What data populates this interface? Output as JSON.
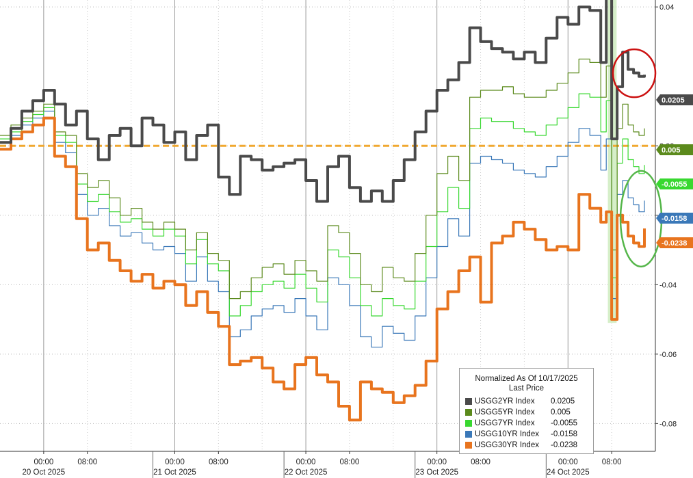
{
  "chart_data": {
    "type": "line",
    "title": "",
    "xlabel": "",
    "ylabel": "",
    "ylim": [
      -0.088,
      0.042
    ],
    "y_ticks": [
      "0.04",
      "0.00",
      "-0.02",
      "-0.04",
      "-0.06",
      "-0.08"
    ],
    "y_tick_values": [
      0.04,
      0.0,
      -0.02,
      -0.04,
      -0.06,
      -0.08
    ],
    "x_ticks": [
      "00:00",
      "08:00",
      "00:00",
      "08:00",
      "00:00",
      "08:00",
      "00:00",
      "08:00",
      "00:00",
      "08:00"
    ],
    "x_tick_hours": [
      24,
      32,
      48,
      56,
      72,
      80,
      96,
      104,
      120,
      128
    ],
    "x_day_labels": [
      "20 Oct 2025",
      "21 Oct 2025",
      "22 Oct 2025",
      "23 Oct 2025",
      "24 Oct 2025"
    ],
    "x_day_hours": [
      24,
      48,
      72,
      96,
      120
    ],
    "x_range_hours": [
      16,
      136
    ],
    "zero_line": {
      "value": 0.0,
      "color": "#f0a830",
      "style": "dashed"
    },
    "grid": true,
    "legend": {
      "position": "bottom-right",
      "title": "Normalized As Of 10/17/2025",
      "subtitle": "Last Price"
    },
    "highlight_band": {
      "x_hours": [
        127.8,
        128.4
      ],
      "color": "#d6efc9"
    },
    "annotations": [
      {
        "shape": "ellipse",
        "color": "#cc1111",
        "around": "USGG2YR Index"
      },
      {
        "shape": "ellipse",
        "color": "#55b64a",
        "around": "USGG7YR Index"
      }
    ],
    "x_hours": [
      16,
      18,
      20,
      22,
      24,
      26,
      28,
      30,
      32,
      34,
      36,
      38,
      40,
      42,
      44,
      46,
      48,
      50,
      52,
      54,
      56,
      58,
      60,
      62,
      64,
      66,
      68,
      70,
      72,
      74,
      76,
      78,
      80,
      82,
      84,
      86,
      88,
      90,
      92,
      94,
      96,
      98,
      100,
      102,
      104,
      106,
      108,
      110,
      112,
      114,
      116,
      118,
      120,
      122,
      124,
      126,
      127,
      128,
      129,
      130,
      131,
      132,
      133,
      134
    ],
    "series": [
      {
        "name": "USGG2YR Index",
        "color": "#4a4a4a",
        "last": "0.0205",
        "last_value": 0.0205,
        "values": [
          0.001,
          0.005,
          0.01,
          0.013,
          0.016,
          0.012,
          0.006,
          0.01,
          0.002,
          -0.004,
          0.003,
          0.005,
          0.0,
          0.008,
          0.006,
          0.001,
          0.004,
          -0.004,
          0.003,
          0.006,
          -0.009,
          -0.014,
          -0.003,
          -0.004,
          -0.007,
          -0.006,
          -0.005,
          -0.004,
          -0.01,
          -0.016,
          -0.006,
          -0.003,
          -0.012,
          -0.016,
          -0.013,
          -0.016,
          -0.01,
          -0.004,
          0.004,
          0.01,
          0.016,
          0.019,
          0.024,
          0.034,
          0.03,
          0.028,
          0.027,
          0.025,
          0.027,
          0.024,
          0.031,
          0.037,
          0.035,
          0.04,
          0.039,
          0.024,
          0.043,
          0.002,
          0.017,
          0.027,
          0.022,
          0.021,
          0.02,
          0.0205
        ]
      },
      {
        "name": "USGG5YR Index",
        "color": "#5b8a1c",
        "last": "0.005",
        "last_value": 0.005,
        "values": [
          0.003,
          0.006,
          0.008,
          0.01,
          0.012,
          0.004,
          0.003,
          -0.008,
          -0.012,
          -0.01,
          -0.015,
          -0.02,
          -0.018,
          -0.022,
          -0.024,
          -0.022,
          -0.024,
          -0.03,
          -0.025,
          -0.031,
          -0.033,
          -0.044,
          -0.042,
          -0.038,
          -0.035,
          -0.034,
          -0.037,
          -0.033,
          -0.036,
          -0.039,
          -0.023,
          -0.025,
          -0.031,
          -0.04,
          -0.042,
          -0.035,
          -0.038,
          -0.039,
          -0.031,
          -0.02,
          -0.008,
          -0.003,
          -0.01,
          0.014,
          0.016,
          0.016,
          0.017,
          0.015,
          0.014,
          0.014,
          0.016,
          0.018,
          0.021,
          0.025,
          0.024,
          0.014,
          0.023,
          -0.03,
          0.005,
          0.012,
          0.006,
          0.004,
          0.003,
          0.005
        ]
      },
      {
        "name": "USGG7YR Index",
        "color": "#38d830",
        "last": "-0.0055",
        "last_value": -0.0055,
        "values": [
          0.002,
          0.004,
          0.007,
          0.009,
          0.011,
          0.003,
          0.001,
          -0.011,
          -0.016,
          -0.014,
          -0.019,
          -0.022,
          -0.021,
          -0.024,
          -0.026,
          -0.024,
          -0.026,
          -0.034,
          -0.027,
          -0.034,
          -0.036,
          -0.049,
          -0.046,
          -0.042,
          -0.04,
          -0.039,
          -0.041,
          -0.037,
          -0.041,
          -0.045,
          -0.03,
          -0.032,
          -0.038,
          -0.046,
          -0.049,
          -0.044,
          -0.046,
          -0.047,
          -0.039,
          -0.029,
          -0.019,
          -0.012,
          -0.018,
          0.005,
          0.008,
          0.007,
          0.007,
          0.005,
          0.004,
          0.003,
          0.006,
          0.008,
          0.011,
          0.015,
          0.014,
          0.004,
          0.013,
          -0.038,
          -0.005,
          0.002,
          -0.004,
          -0.006,
          -0.008,
          -0.0055
        ]
      },
      {
        "name": "USGG10YR Index",
        "color": "#3a78b8",
        "last": "-0.0158",
        "last_value": -0.0158,
        "values": [
          0.001,
          0.003,
          0.006,
          0.008,
          0.01,
          0.001,
          -0.002,
          -0.014,
          -0.02,
          -0.018,
          -0.023,
          -0.026,
          -0.025,
          -0.028,
          -0.03,
          -0.029,
          -0.031,
          -0.039,
          -0.032,
          -0.039,
          -0.042,
          -0.055,
          -0.053,
          -0.049,
          -0.047,
          -0.046,
          -0.048,
          -0.044,
          -0.049,
          -0.053,
          -0.038,
          -0.04,
          -0.046,
          -0.055,
          -0.058,
          -0.052,
          -0.054,
          -0.056,
          -0.049,
          -0.038,
          -0.029,
          -0.021,
          -0.026,
          -0.005,
          -0.003,
          -0.004,
          -0.005,
          -0.007,
          -0.008,
          -0.009,
          -0.006,
          -0.003,
          0.001,
          0.005,
          0.003,
          -0.007,
          0.002,
          -0.044,
          -0.014,
          -0.01,
          -0.015,
          -0.017,
          -0.019,
          -0.0158
        ]
      },
      {
        "name": "USGG30YR Index",
        "color": "#e8741e",
        "last": "-0.0238",
        "last_value": -0.0238,
        "values": [
          -0.001,
          0.002,
          0.004,
          0.006,
          0.008,
          -0.003,
          -0.006,
          -0.021,
          -0.03,
          -0.028,
          -0.033,
          -0.036,
          -0.039,
          -0.037,
          -0.041,
          -0.039,
          -0.04,
          -0.046,
          -0.042,
          -0.048,
          -0.052,
          -0.063,
          -0.062,
          -0.061,
          -0.064,
          -0.068,
          -0.07,
          -0.063,
          -0.061,
          -0.066,
          -0.068,
          -0.075,
          -0.079,
          -0.068,
          -0.07,
          -0.071,
          -0.074,
          -0.072,
          -0.069,
          -0.062,
          -0.047,
          -0.042,
          -0.036,
          -0.032,
          -0.045,
          -0.028,
          -0.026,
          -0.022,
          -0.024,
          -0.027,
          -0.03,
          -0.029,
          -0.03,
          -0.014,
          -0.018,
          -0.022,
          -0.019,
          -0.05,
          -0.02,
          -0.022,
          -0.026,
          -0.028,
          -0.029,
          -0.0238
        ]
      }
    ]
  }
}
